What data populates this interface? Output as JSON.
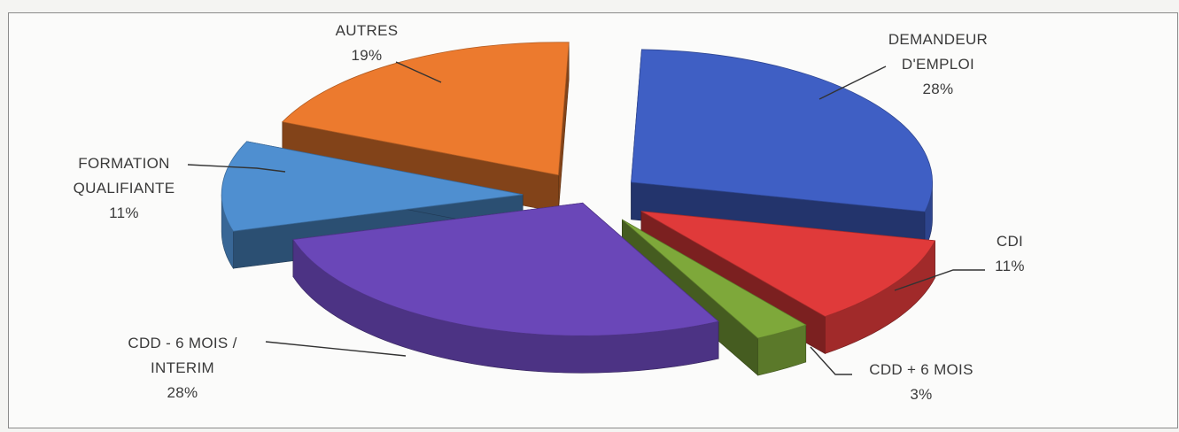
{
  "chart_data": {
    "type": "pie",
    "style": "3d-exploded",
    "title": "",
    "slices": [
      {
        "label": "DEMANDEUR D'EMPLOI",
        "lines": [
          "DEMANDEUR",
          "D'EMPLOI"
        ],
        "value": 28,
        "pct_label": "28%",
        "color": "#3f5fc4"
      },
      {
        "label": "CDI",
        "lines": [
          "CDI"
        ],
        "value": 11,
        "pct_label": "11%",
        "color": "#e03a3a"
      },
      {
        "label": "CDD + 6 MOIS",
        "lines": [
          "CDD + 6 MOIS"
        ],
        "value": 3,
        "pct_label": "3%",
        "color": "#7ea83a"
      },
      {
        "label": "CDD - 6 MOIS / INTERIM",
        "lines": [
          "CDD - 6 MOIS /",
          "INTERIM"
        ],
        "value": 28,
        "pct_label": "28%",
        "color": "#6a47b8"
      },
      {
        "label": "FORMATION QUALIFIANTE",
        "lines": [
          "FORMATION",
          "QUALIFIANTE"
        ],
        "value": 11,
        "pct_label": "11%",
        "color": "#4f8fd0"
      },
      {
        "label": "AUTRES",
        "lines": [
          "AUTRES"
        ],
        "value": 19,
        "pct_label": "19%",
        "color": "#ec7a2e"
      }
    ]
  }
}
